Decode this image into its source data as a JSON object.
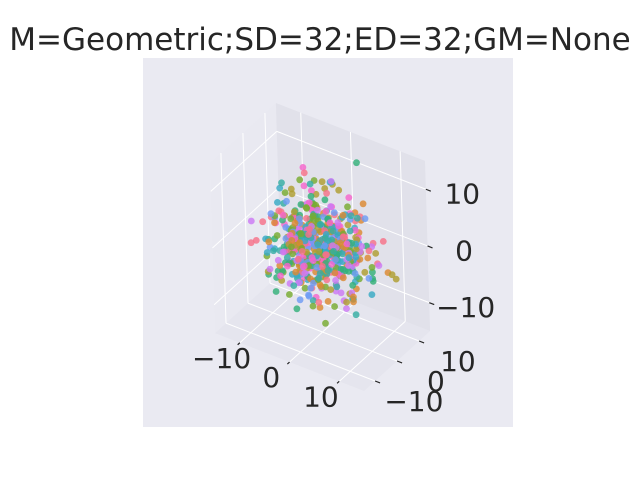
{
  "chart_data": {
    "type": "scatter",
    "projection": "3d",
    "title": "M=Geometric;SD=32;ED=32;GM=None",
    "grid": true,
    "legend": "none",
    "background": "#eaeaf2",
    "pane_colors": [
      "#e1e1ea",
      "#e5e5ee",
      "#e9e9f1"
    ],
    "grid_color": "#ffffff",
    "xlim": [
      -15,
      15
    ],
    "ylim": [
      -15,
      15
    ],
    "zlim": [
      -15,
      15
    ],
    "x_ticks": [
      -10,
      0,
      10
    ],
    "y_ticks": [
      -10,
      0,
      10
    ],
    "z_ticks": [
      -10,
      0,
      10
    ],
    "x_tick_labels": [
      "−10",
      "0",
      "10"
    ],
    "y_tick_labels": [
      "−10",
      "0",
      "10"
    ],
    "z_tick_labels": [
      "−10",
      "0",
      "10"
    ],
    "series_colors": [
      "#f77189",
      "#dc8932",
      "#ae9d31",
      "#77ab31",
      "#33b07a",
      "#36ada4",
      "#38a9c5",
      "#6e9bf4",
      "#cc7af4",
      "#f565cc"
    ],
    "points_per_series": 60,
    "series_spread": 4.5,
    "seed": 7
  }
}
